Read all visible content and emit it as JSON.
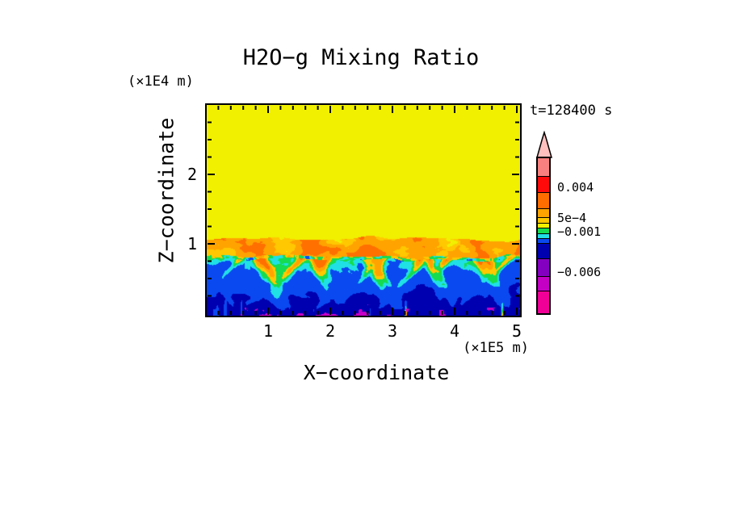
{
  "page": {
    "background": "#FFFFFF"
  },
  "header": {
    "title": "H2O−g Mixing Ratio",
    "y_unit_label": "(×1E4 m)",
    "time_label": "t=128400 s"
  },
  "axes": {
    "x": {
      "title": "X−coordinate",
      "unit_label": "(×1E5 m)",
      "tick_labels": [
        "1",
        "2",
        "3",
        "4",
        "5"
      ]
    },
    "z": {
      "title": "Z−coordinate",
      "tick_labels": [
        "1",
        "2"
      ]
    }
  },
  "colorbar": {
    "tip_color": "#FFC0BE",
    "labels": [
      "0.004",
      "5e−4",
      "−0.001",
      "−0.006"
    ],
    "segments": [
      {
        "color": "#F8807E",
        "h": 22
      },
      {
        "color": "#FF0A0A",
        "h": 20
      },
      {
        "color": "#FF6C00",
        "h": 20
      },
      {
        "color": "#FFA300",
        "h": 11
      },
      {
        "color": "#FFC800",
        "h": 7
      },
      {
        "color": "#F0F000",
        "h": 6
      },
      {
        "color": "#15DC50",
        "h": 7
      },
      {
        "color": "#20E0E6",
        "h": 6
      },
      {
        "color": "#0A49F0",
        "h": 6
      },
      {
        "color": "#0000B0",
        "h": 19
      },
      {
        "color": "#8400C0",
        "h": 22
      },
      {
        "color": "#C400C4",
        "h": 18
      },
      {
        "color": "#F00096",
        "h": 28
      }
    ]
  },
  "chart_data": {
    "type": "heatmap",
    "title": "H2O−g Mixing Ratio",
    "time_label": "t=128400 s",
    "xlabel": "X−coordinate (×1E5 m)",
    "zlabel": "Z−coordinate (×1E4 m)",
    "x_range": [
      0,
      5.05
    ],
    "z_range": [
      0,
      3.02
    ],
    "x_major_ticks": [
      1,
      2,
      3,
      4,
      5
    ],
    "x_minor_step": 0.2,
    "z_major_ticks": [
      1,
      2
    ],
    "z_minor_step": 0.25,
    "colorbar_labeled_values": [
      "0.004",
      "5e−4",
      "−0.001",
      "−0.006"
    ],
    "field": {
      "interface_z": 0.8,
      "band_top_z": 1.1,
      "palette": {
        "yellow": "#F0F000",
        "gold": "#FFC800",
        "ltorange": "#FFA300",
        "orange": "#FF7000",
        "green": "#15DC50",
        "cyan": "#20E0E6",
        "blue": "#0A49F0",
        "navy": "#0000B0",
        "magenta": "#C800C8"
      },
      "plumes": [
        [
          0.45,
          0.3,
          0.07
        ],
        [
          0.75,
          0.25,
          0.06
        ],
        [
          1.05,
          0.55,
          0.09
        ],
        [
          1.38,
          0.35,
          0.07
        ],
        [
          1.75,
          0.5,
          0.09
        ],
        [
          2.1,
          0.3,
          0.07
        ],
        [
          2.42,
          0.35,
          0.06
        ],
        [
          2.68,
          0.45,
          0.08
        ],
        [
          3.0,
          0.4,
          0.07
        ],
        [
          3.25,
          0.45,
          0.08
        ],
        [
          3.58,
          0.4,
          0.07
        ],
        [
          3.95,
          0.45,
          0.08
        ],
        [
          4.28,
          0.3,
          0.06
        ],
        [
          4.55,
          0.5,
          0.1
        ],
        [
          4.88,
          0.35,
          0.07
        ]
      ]
    },
    "description": "Two-layer convective structure: uniform yellow upper layer above z≈1.1e4 m, a light-orange enhanced band at z≈0.8–1.1e4 m, and a turbulent lower layer (z<0.8e4 m) of blue/navy air with cyan-green filaments, rising orange-gold plumes and sparse magenta minima near the bottom."
  }
}
